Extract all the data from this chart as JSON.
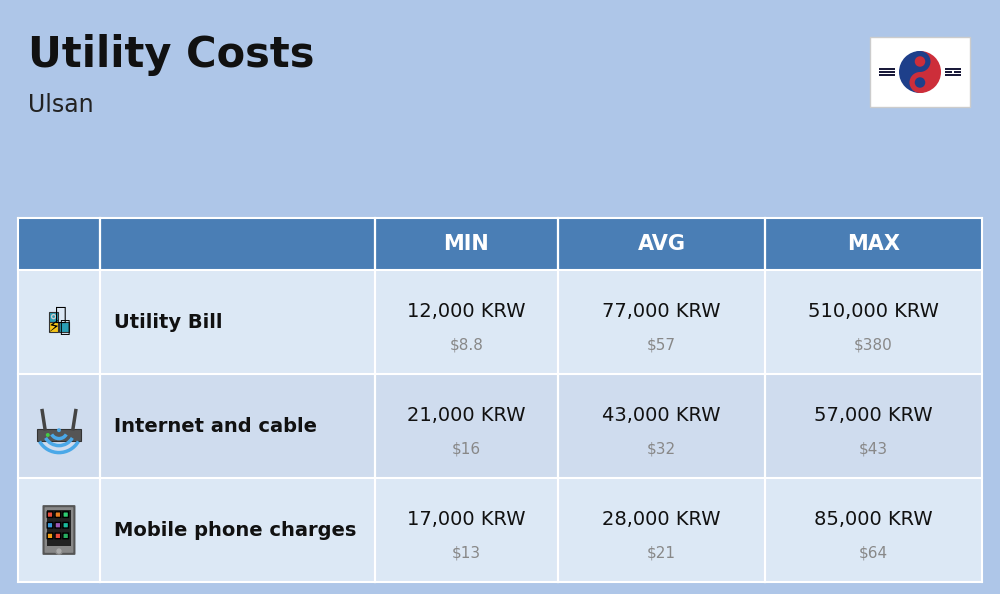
{
  "title": "Utility Costs",
  "subtitle": "Ulsan",
  "background_color": "#aec6e8",
  "header_color": "#4a7eb5",
  "header_text_color": "#ffffff",
  "row_color_1": "#dce8f5",
  "row_color_2": "#cfdcee",
  "columns": [
    "MIN",
    "AVG",
    "MAX"
  ],
  "rows": [
    {
      "label": "Utility Bill",
      "min_krw": "12,000 KRW",
      "min_usd": "$8.8",
      "avg_krw": "77,000 KRW",
      "avg_usd": "$57",
      "max_krw": "510,000 KRW",
      "max_usd": "$380",
      "icon": "utility"
    },
    {
      "label": "Internet and cable",
      "min_krw": "21,000 KRW",
      "min_usd": "$16",
      "avg_krw": "43,000 KRW",
      "avg_usd": "$32",
      "max_krw": "57,000 KRW",
      "max_usd": "$43",
      "icon": "internet"
    },
    {
      "label": "Mobile phone charges",
      "min_krw": "17,000 KRW",
      "min_usd": "$13",
      "avg_krw": "28,000 KRW",
      "avg_usd": "$21",
      "max_krw": "85,000 KRW",
      "max_usd": "$64",
      "icon": "mobile"
    }
  ],
  "title_fontsize": 30,
  "subtitle_fontsize": 17,
  "header_fontsize": 15,
  "label_fontsize": 14,
  "value_fontsize": 14,
  "usd_fontsize": 11,
  "usd_color": "#888888"
}
